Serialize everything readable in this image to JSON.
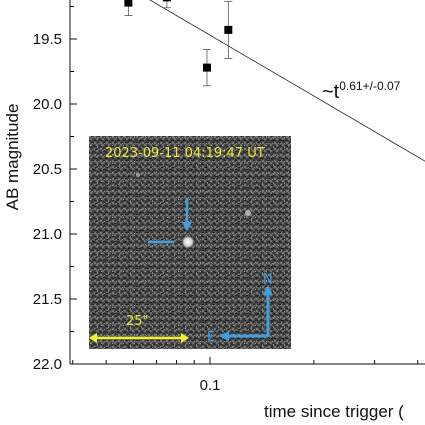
{
  "chart_data": {
    "type": "scatter",
    "title": "",
    "xlabel": "time since trigger (",
    "ylabel": "AB magnitude",
    "xscale": "log",
    "yaxis_inverted": true,
    "ylim": [
      22.0,
      19.2
    ],
    "y_ticks": [
      {
        "value": 19.5,
        "label": "19.5"
      },
      {
        "value": 20.0,
        "label": "20.0"
      },
      {
        "value": 20.5,
        "label": "20.5"
      },
      {
        "value": 21.0,
        "label": "21.0"
      },
      {
        "value": 21.5,
        "label": "21.5"
      },
      {
        "value": 22.0,
        "label": "22.0"
      }
    ],
    "x_ticks": [
      {
        "value": 0.1,
        "label": "0.1"
      }
    ],
    "grid": false,
    "series": [
      {
        "marker": "square",
        "color": "#000000",
        "points": [
          {
            "x": 0.058,
            "y": 19.22,
            "err": 0.1
          },
          {
            "x": 0.075,
            "y": 19.18,
            "err": 0.08
          },
          {
            "x": 0.098,
            "y": 19.72,
            "err": 0.14
          },
          {
            "x": 0.113,
            "y": 19.43,
            "err": 0.22
          }
        ]
      }
    ],
    "fit_line": {
      "points": [
        {
          "x": 0.067,
          "y": 19.2
        },
        {
          "x": 0.48,
          "y": 20.53
        }
      ],
      "label": "~t",
      "label_exponent": "0.61+/-0.07"
    },
    "inset": {
      "timestamp": "2023-09-11 04:19:47 UT",
      "scale_label": "25\"",
      "north_label": "N",
      "east_label": "E",
      "accent_color": "#3fa0e0",
      "scale_color": "#f0f032"
    }
  }
}
